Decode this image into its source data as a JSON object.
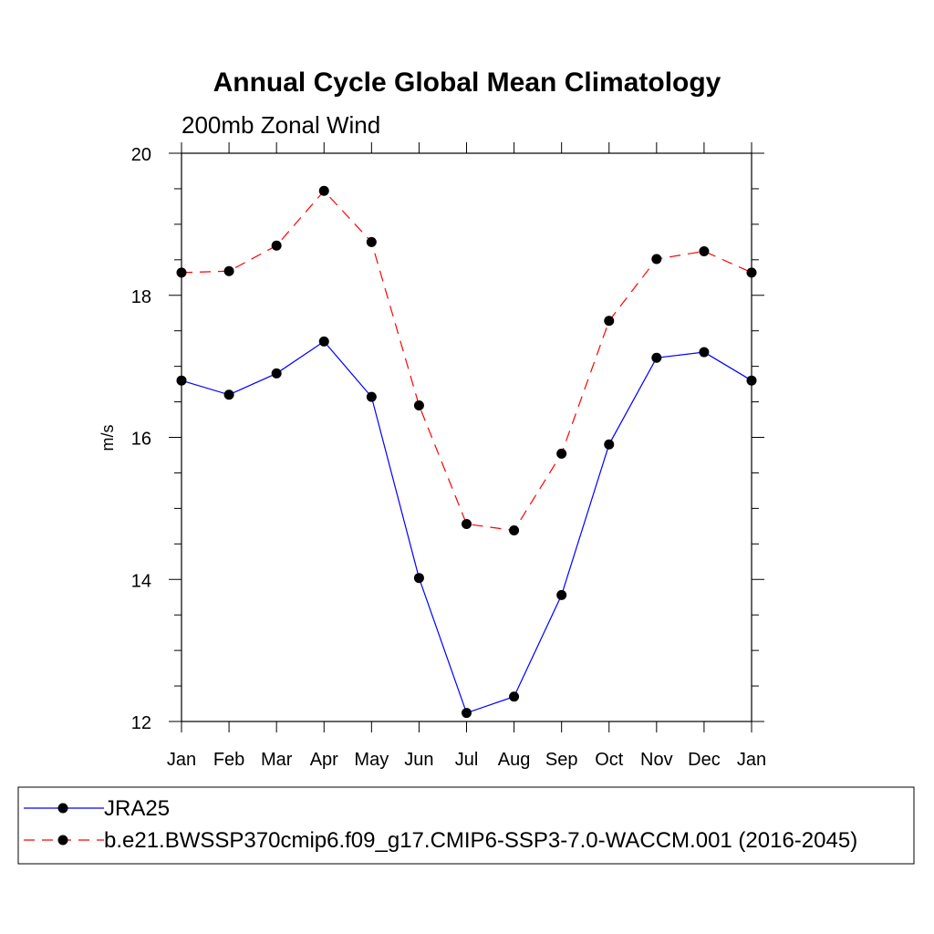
{
  "chart_data": {
    "type": "line",
    "title": "Annual Cycle Global Mean Climatology",
    "subtitle": "200mb Zonal Wind",
    "ylabel": "m/s",
    "xlabel": "",
    "categories": [
      "Jan",
      "Feb",
      "Mar",
      "Apr",
      "May",
      "Jun",
      "Jul",
      "Aug",
      "Sep",
      "Oct",
      "Nov",
      "Dec",
      "Jan"
    ],
    "ylim": [
      12,
      20
    ],
    "yticks": [
      "12",
      "14",
      "16",
      "18",
      "20"
    ],
    "grid": false,
    "legend_position": "bottom",
    "series": [
      {
        "name": "JRA25",
        "color": "#0000ff",
        "style": "solid",
        "values": [
          16.8,
          16.6,
          16.9,
          17.35,
          16.57,
          14.02,
          12.12,
          12.35,
          13.78,
          15.9,
          17.12,
          17.2,
          16.8
        ]
      },
      {
        "name": "b.e21.BWSSP370cmip6.f09_g17.CMIP6-SSP3-7.0-WACCM.001 (2016-2045)",
        "color": "#ff0000",
        "style": "dashed",
        "values": [
          18.32,
          18.34,
          18.7,
          19.47,
          18.75,
          16.45,
          14.78,
          14.69,
          15.77,
          17.64,
          18.51,
          18.62,
          18.32
        ]
      }
    ]
  }
}
